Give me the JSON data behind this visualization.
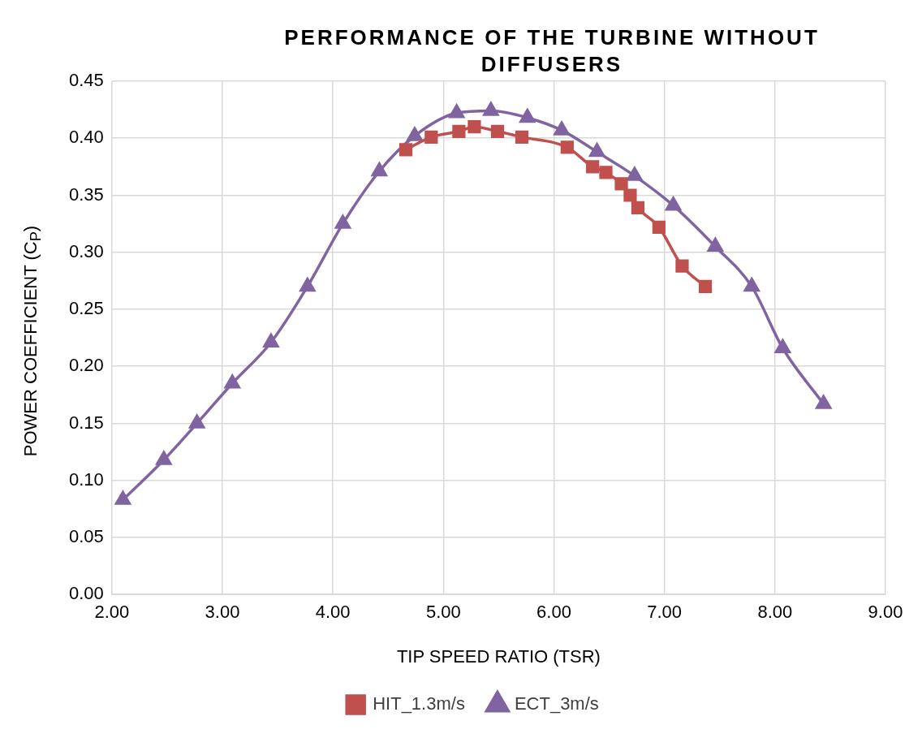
{
  "chart_data": {
    "type": "line",
    "title": "PERFORMANCE OF THE TURBINE WITHOUT DIFFUSERS",
    "xlabel": "TIP SPEED RATIO (TSR)",
    "ylabel": "POWER COEFFICIENT (C$_{P}$)",
    "xlim": [
      2,
      9
    ],
    "xticks": [
      {
        "value": 2,
        "label": "2.00"
      },
      {
        "value": 3,
        "label": "3.00"
      },
      {
        "value": 4,
        "label": "4.00"
      },
      {
        "value": 5,
        "label": "5.00"
      },
      {
        "value": 6,
        "label": "6.00"
      },
      {
        "value": 7,
        "label": "7.00"
      },
      {
        "value": 8,
        "label": "8.00"
      },
      {
        "value": 9,
        "label": "9.00"
      }
    ],
    "ylim": [
      0,
      0.45
    ],
    "yticks": [
      {
        "value": 0,
        "label": "0.00"
      },
      {
        "value": 0.05,
        "label": "0.05"
      },
      {
        "value": 0.1,
        "label": "0.10"
      },
      {
        "value": 0.15,
        "label": "0.15"
      },
      {
        "value": 0.2,
        "label": "0.20"
      },
      {
        "value": 0.25,
        "label": "0.25"
      },
      {
        "value": 0.3,
        "label": "0.30"
      },
      {
        "value": 0.35,
        "label": "0.35"
      },
      {
        "value": 0.4,
        "label": "0.40"
      },
      {
        "value": 0.45,
        "label": "0.45"
      }
    ],
    "grid": true,
    "legend": "bottom",
    "series": [
      {
        "name": "HIT_1.3m/s",
        "color": "#c0504d",
        "marker": "square",
        "x": [
          4.66,
          4.89,
          5.14,
          5.28,
          5.49,
          5.71,
          6.12,
          6.35,
          6.47,
          6.61,
          6.69,
          6.76,
          6.95,
          7.16,
          7.37
        ],
        "values": [
          0.39,
          0.401,
          0.406,
          0.41,
          0.406,
          0.401,
          0.392,
          0.375,
          0.37,
          0.36,
          0.35,
          0.339,
          0.322,
          0.288,
          0.27
        ]
      },
      {
        "name": "ECT_3m/s",
        "color": "#8064a2",
        "marker": "triangle",
        "x": [
          2.1,
          2.47,
          2.77,
          3.09,
          3.44,
          3.77,
          4.09,
          4.42,
          4.74,
          5.12,
          5.43,
          5.76,
          6.07,
          6.39,
          6.73,
          7.08,
          7.46,
          7.79,
          8.07,
          8.44
        ],
        "values": [
          0.083,
          0.118,
          0.15,
          0.185,
          0.221,
          0.27,
          0.325,
          0.371,
          0.402,
          0.422,
          0.424,
          0.418,
          0.407,
          0.388,
          0.367,
          0.341,
          0.305,
          0.27,
          0.216,
          0.167
        ]
      }
    ]
  }
}
